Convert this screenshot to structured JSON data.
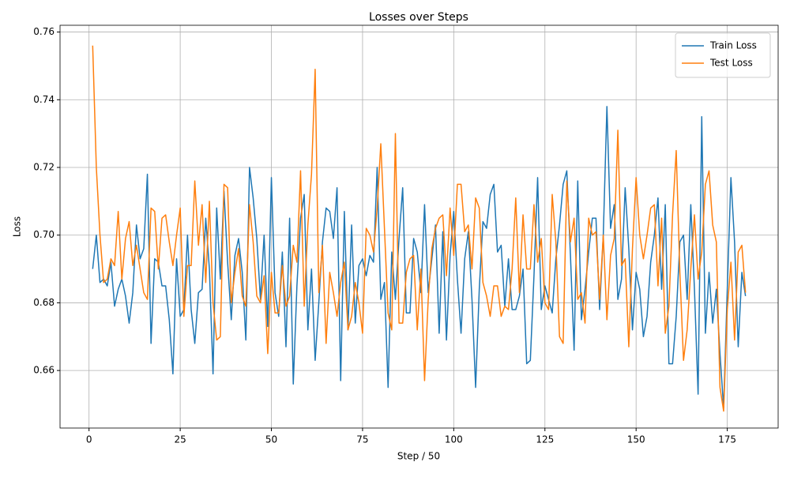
{
  "chart_data": {
    "type": "line",
    "title": "Losses over Steps",
    "x_label": "Step / 50",
    "y_label": "Loss",
    "x": [
      1,
      2,
      3,
      4,
      5,
      6,
      7,
      8,
      9,
      10,
      11,
      12,
      13,
      14,
      15,
      16,
      17,
      18,
      19,
      20,
      21,
      22,
      23,
      24,
      25,
      26,
      27,
      28,
      29,
      30,
      31,
      32,
      33,
      34,
      35,
      36,
      37,
      38,
      39,
      40,
      41,
      42,
      43,
      44,
      45,
      46,
      47,
      48,
      49,
      50,
      51,
      52,
      53,
      54,
      55,
      56,
      57,
      58,
      59,
      60,
      61,
      62,
      63,
      64,
      65,
      66,
      67,
      68,
      69,
      70,
      71,
      72,
      73,
      74,
      75,
      76,
      77,
      78,
      79,
      80,
      81,
      82,
      83,
      84,
      85,
      86,
      87,
      88,
      89,
      90,
      91,
      92,
      93,
      94,
      95,
      96,
      97,
      98,
      99,
      100,
      101,
      102,
      103,
      104,
      105,
      106,
      107,
      108,
      109,
      110,
      111,
      112,
      113,
      114,
      115,
      116,
      117,
      118,
      119,
      120,
      121,
      122,
      123,
      124,
      125,
      126,
      127,
      128,
      129,
      130,
      131,
      132,
      133,
      134,
      135,
      136,
      137,
      138,
      139,
      140,
      141,
      142,
      143,
      144,
      145,
      146,
      147,
      148,
      149,
      150,
      151,
      152,
      153,
      154,
      155,
      156,
      157,
      158,
      159,
      160,
      161,
      162,
      163,
      164,
      165,
      166,
      167,
      168,
      169,
      170,
      171,
      172,
      173,
      174,
      175,
      176,
      177,
      178,
      179,
      180
    ],
    "series": [
      {
        "name": "Train Loss",
        "color": "#1f77b4",
        "values": [
          0.69,
          0.7,
          0.686,
          0.687,
          0.685,
          0.692,
          0.679,
          0.684,
          0.687,
          0.682,
          0.674,
          0.683,
          0.703,
          0.693,
          0.696,
          0.718,
          0.668,
          0.693,
          0.692,
          0.685,
          0.685,
          0.675,
          0.659,
          0.693,
          0.676,
          0.678,
          0.7,
          0.678,
          0.668,
          0.683,
          0.684,
          0.705,
          0.69,
          0.659,
          0.708,
          0.687,
          0.713,
          0.692,
          0.675,
          0.694,
          0.699,
          0.689,
          0.669,
          0.72,
          0.711,
          0.699,
          0.681,
          0.7,
          0.673,
          0.717,
          0.683,
          0.676,
          0.695,
          0.667,
          0.705,
          0.656,
          0.685,
          0.705,
          0.712,
          0.672,
          0.69,
          0.663,
          0.68,
          0.698,
          0.708,
          0.707,
          0.699,
          0.714,
          0.657,
          0.707,
          0.672,
          0.703,
          0.674,
          0.691,
          0.693,
          0.688,
          0.694,
          0.692,
          0.72,
          0.681,
          0.686,
          0.655,
          0.695,
          0.681,
          0.699,
          0.714,
          0.677,
          0.677,
          0.699,
          0.695,
          0.683,
          0.709,
          0.683,
          0.693,
          0.703,
          0.671,
          0.701,
          0.669,
          0.694,
          0.707,
          0.687,
          0.671,
          0.693,
          0.701,
          0.681,
          0.655,
          0.684,
          0.704,
          0.702,
          0.712,
          0.715,
          0.695,
          0.697,
          0.679,
          0.693,
          0.678,
          0.678,
          0.682,
          0.69,
          0.662,
          0.663,
          0.688,
          0.717,
          0.678,
          0.685,
          0.681,
          0.677,
          0.693,
          0.703,
          0.715,
          0.719,
          0.694,
          0.666,
          0.716,
          0.675,
          0.684,
          0.695,
          0.705,
          0.705,
          0.678,
          0.7,
          0.738,
          0.702,
          0.709,
          0.681,
          0.687,
          0.714,
          0.696,
          0.672,
          0.689,
          0.684,
          0.67,
          0.676,
          0.692,
          0.7,
          0.711,
          0.684,
          0.709,
          0.662,
          0.662,
          0.676,
          0.698,
          0.7,
          0.681,
          0.709,
          0.684,
          0.653,
          0.735,
          0.671,
          0.689,
          0.674,
          0.684,
          0.665,
          0.649,
          0.684,
          0.717,
          0.698,
          0.667,
          0.689,
          0.682
        ]
      },
      {
        "name": "Test Loss",
        "color": "#ff7f0e",
        "values": [
          0.756,
          0.72,
          0.7,
          0.686,
          0.687,
          0.693,
          0.691,
          0.707,
          0.687,
          0.699,
          0.704,
          0.691,
          0.697,
          0.69,
          0.683,
          0.681,
          0.708,
          0.707,
          0.69,
          0.705,
          0.706,
          0.698,
          0.691,
          0.7,
          0.708,
          0.676,
          0.691,
          0.691,
          0.716,
          0.697,
          0.709,
          0.686,
          0.71,
          0.68,
          0.669,
          0.67,
          0.715,
          0.714,
          0.68,
          0.689,
          0.696,
          0.682,
          0.679,
          0.709,
          0.698,
          0.682,
          0.68,
          0.688,
          0.665,
          0.689,
          0.677,
          0.677,
          0.691,
          0.679,
          0.682,
          0.697,
          0.692,
          0.719,
          0.679,
          0.703,
          0.718,
          0.749,
          0.683,
          0.697,
          0.668,
          0.689,
          0.683,
          0.676,
          0.686,
          0.692,
          0.672,
          0.676,
          0.686,
          0.68,
          0.671,
          0.702,
          0.7,
          0.695,
          0.708,
          0.727,
          0.702,
          0.677,
          0.672,
          0.73,
          0.674,
          0.674,
          0.689,
          0.693,
          0.694,
          0.672,
          0.69,
          0.657,
          0.681,
          0.696,
          0.702,
          0.705,
          0.706,
          0.688,
          0.708,
          0.694,
          0.715,
          0.715,
          0.701,
          0.703,
          0.69,
          0.711,
          0.708,
          0.686,
          0.682,
          0.676,
          0.685,
          0.685,
          0.676,
          0.679,
          0.678,
          0.69,
          0.711,
          0.683,
          0.706,
          0.69,
          0.69,
          0.709,
          0.692,
          0.699,
          0.68,
          0.678,
          0.712,
          0.698,
          0.67,
          0.668,
          0.716,
          0.698,
          0.705,
          0.681,
          0.683,
          0.674,
          0.705,
          0.7,
          0.701,
          0.681,
          0.7,
          0.675,
          0.694,
          0.699,
          0.731,
          0.691,
          0.693,
          0.667,
          0.696,
          0.717,
          0.7,
          0.693,
          0.7,
          0.708,
          0.709,
          0.685,
          0.705,
          0.671,
          0.679,
          0.706,
          0.725,
          0.689,
          0.663,
          0.672,
          0.69,
          0.706,
          0.687,
          0.695,
          0.715,
          0.719,
          0.703,
          0.698,
          0.655,
          0.648,
          0.678,
          0.692,
          0.669,
          0.695,
          0.697,
          0.683
        ]
      }
    ],
    "xlim": [
      -7.95,
      188.95
    ],
    "xticks": [
      0,
      25,
      50,
      75,
      100,
      125,
      150,
      175
    ],
    "ylim": [
      0.643,
      0.762
    ],
    "yticks": [
      {
        "value": 0.66,
        "label": "0.66"
      },
      {
        "value": 0.68,
        "label": "0.68"
      },
      {
        "value": 0.7,
        "label": "0.70"
      },
      {
        "value": 0.72,
        "label": "0.72"
      },
      {
        "value": 0.74,
        "label": "0.74"
      },
      {
        "value": 0.76,
        "label": "0.76"
      }
    ],
    "grid": true,
    "legend": "upper right"
  }
}
